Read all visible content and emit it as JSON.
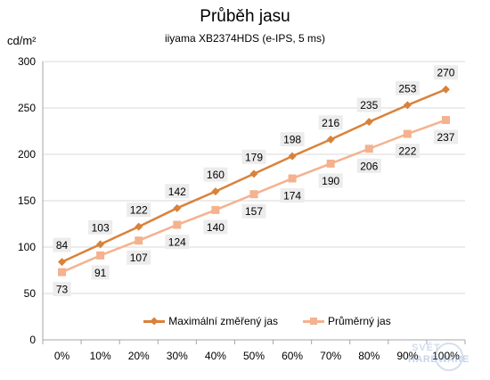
{
  "chart_data": {
    "type": "line",
    "title": "Průběh jasu",
    "subtitle": "iiyama XB2374HDS  (e-IPS, 5 ms)",
    "ylabel": "cd/m²",
    "xlabel": "",
    "categories": [
      "0%",
      "10%",
      "20%",
      "30%",
      "40%",
      "50%",
      "60%",
      "70%",
      "80%",
      "90%",
      "100%"
    ],
    "ylim": [
      0,
      300
    ],
    "yticks": [
      0,
      50,
      100,
      150,
      200,
      250,
      300
    ],
    "ytick_labels": [
      "0",
      "50",
      "100",
      "150",
      "200",
      "250",
      "300"
    ],
    "grid": true,
    "legend": "bottom-center",
    "series": [
      {
        "name": "Maximální změřený jas",
        "color": "#d9823a",
        "marker": "diamond",
        "values": [
          84,
          103,
          122,
          142,
          160,
          179,
          198,
          216,
          235,
          253,
          270
        ],
        "labels": [
          "84",
          "103",
          "122",
          "142",
          "160",
          "179",
          "198",
          "216",
          "235",
          "253",
          "270"
        ]
      },
      {
        "name": "Průměrný jas",
        "color": "#f4b28e",
        "marker": "square",
        "values": [
          73,
          91,
          107,
          124,
          140,
          157,
          174,
          190,
          206,
          222,
          237
        ],
        "labels": [
          "73",
          "91",
          "107",
          "124",
          "140",
          "157",
          "174",
          "190",
          "206",
          "222",
          "237"
        ]
      }
    ]
  },
  "watermark": {
    "line1": "SVĚT",
    "line2": "HARDWARE"
  }
}
